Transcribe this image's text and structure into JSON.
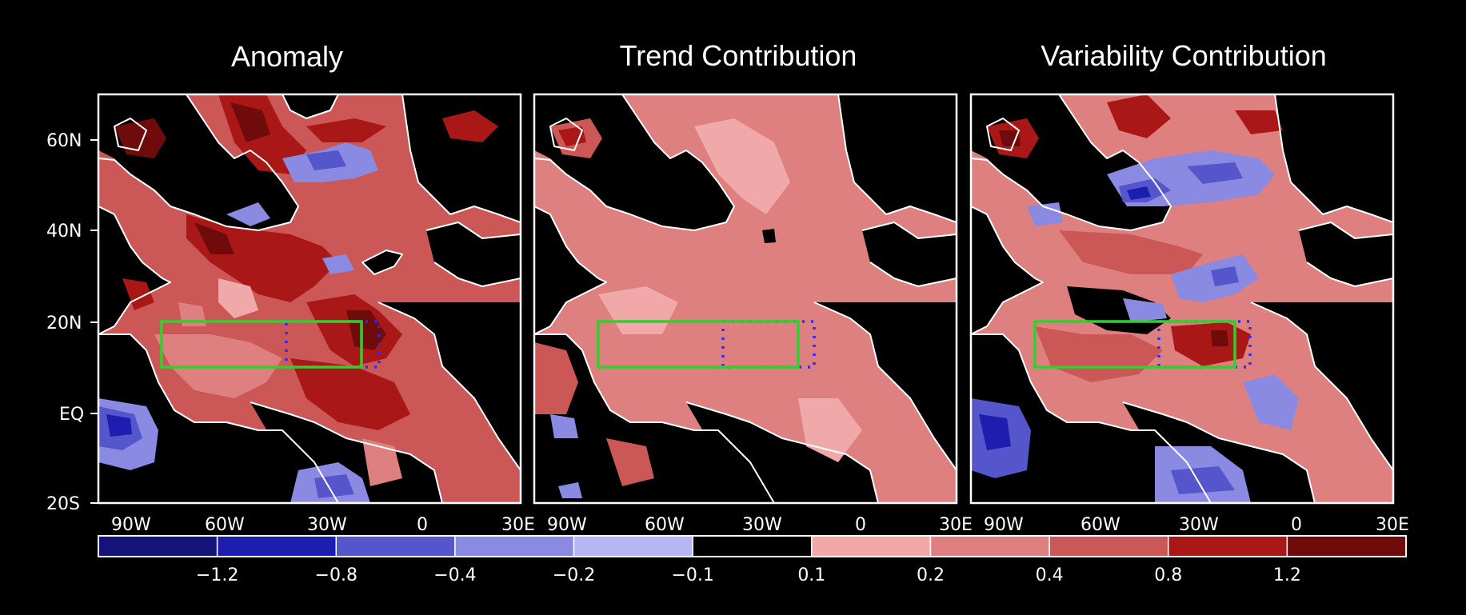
{
  "panels": [
    {
      "title": "Anomaly"
    },
    {
      "title": "Trend Contribution"
    },
    {
      "title": "Variability Contribution"
    }
  ],
  "y_ticks": [
    "60N",
    "40N",
    "20N",
    "EQ",
    "20S"
  ],
  "x_ticks": [
    "90W",
    "60W",
    "30W",
    "0",
    "30E"
  ],
  "colorbar": {
    "labels": [
      "-1.2",
      "-0.8",
      "-0.4",
      "-0.2",
      "-0.1",
      "0.1",
      "0.2",
      "0.4",
      "0.8",
      "1.2"
    ],
    "colors": [
      "#13137a",
      "#1d1db0",
      "#5555cc",
      "#8a8ae2",
      "#b6b6f4",
      "#000000",
      "#f0a8a8",
      "#df8080",
      "#cc5757",
      "#aa1717",
      "#700b0b"
    ]
  },
  "colors": {
    "box": "#2ed12e",
    "dashed_box": "#2a2aff",
    "background": "#000000",
    "ocean_base_trend": "#df8080"
  }
}
